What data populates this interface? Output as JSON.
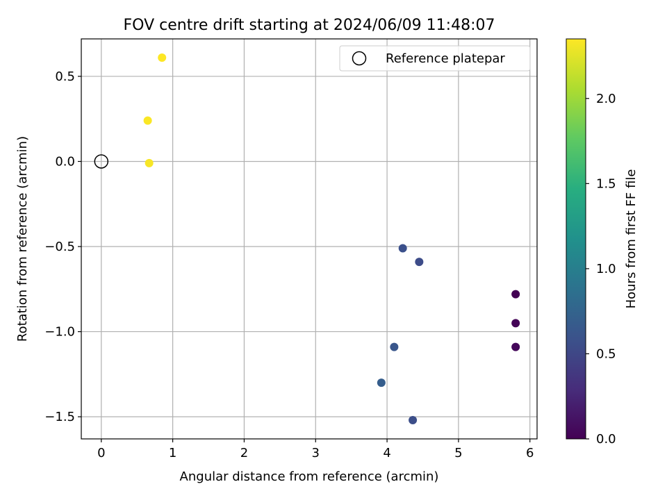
{
  "chart_data": {
    "type": "scatter",
    "title": "FOV centre drift starting at 2024/06/09 11:48:07",
    "xlabel": "Angular distance from reference (arcmin)",
    "ylabel": "Rotation from reference (arcmin)",
    "xlim": [
      -0.28,
      6.1
    ],
    "ylim": [
      -1.63,
      0.72
    ],
    "xticks": [
      0,
      1,
      2,
      3,
      4,
      5,
      6
    ],
    "xtick_labels": [
      "0",
      "1",
      "2",
      "3",
      "4",
      "5",
      "6"
    ],
    "yticks": [
      0.5,
      0.0,
      -0.5,
      -1.0,
      -1.5
    ],
    "ytick_labels": [
      "0.5",
      "0.0",
      "−0.5",
      "−1.0",
      "−1.5"
    ],
    "grid": true,
    "legend": {
      "placement": "upper-right",
      "entries": [
        {
          "label": "Reference platepar",
          "marker": "open-circle",
          "color": "#000000"
        }
      ]
    },
    "reference_point": {
      "x": 0.0,
      "y": 0.0
    },
    "colorbar": {
      "label": "Hours from first FF file",
      "range": [
        0.0,
        2.35
      ],
      "ticks": [
        0.0,
        0.5,
        1.0,
        1.5,
        2.0
      ],
      "tick_labels": [
        "0.0",
        "0.5",
        "1.0",
        "1.5",
        "2.0"
      ],
      "colormap": "viridis"
    },
    "points": [
      {
        "x": 5.8,
        "y": -0.78,
        "t": 0.0
      },
      {
        "x": 5.8,
        "y": -0.95,
        "t": 0.02
      },
      {
        "x": 5.8,
        "y": -1.09,
        "t": 0.04
      },
      {
        "x": 4.45,
        "y": -0.59,
        "t": 0.55
      },
      {
        "x": 4.22,
        "y": -0.51,
        "t": 0.58
      },
      {
        "x": 4.36,
        "y": -1.52,
        "t": 0.56
      },
      {
        "x": 4.1,
        "y": -1.09,
        "t": 0.63
      },
      {
        "x": 3.92,
        "y": -1.3,
        "t": 0.7
      },
      {
        "x": 0.67,
        "y": -0.01,
        "t": 2.33
      },
      {
        "x": 0.65,
        "y": 0.24,
        "t": 2.34
      },
      {
        "x": 0.85,
        "y": 0.61,
        "t": 2.35
      }
    ]
  }
}
